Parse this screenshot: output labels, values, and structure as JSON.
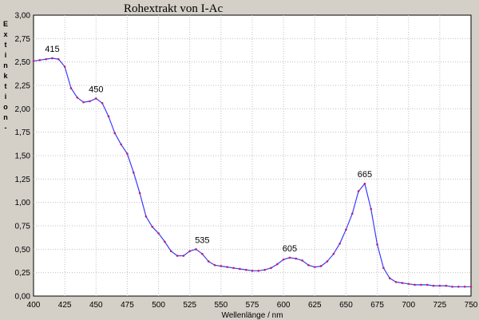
{
  "chart_data": {
    "type": "line",
    "title": "Rohextrakt von I-Ac",
    "xlabel": "Wellenlänge / nm",
    "ylabel": "Extinktion -",
    "xlim": [
      400,
      750
    ],
    "ylim": [
      0,
      3
    ],
    "xticks": [
      "400",
      "425",
      "450",
      "475",
      "500",
      "525",
      "550",
      "575",
      "600",
      "625",
      "650",
      "675",
      "700",
      "725",
      "750"
    ],
    "yticks": [
      "0,00",
      "0,25",
      "0,50",
      "0,75",
      "1,00",
      "1,25",
      "1,50",
      "1,75",
      "2,00",
      "2,25",
      "2,50",
      "2,75",
      "3,00"
    ],
    "grid": true,
    "line_color": "#3a3aff",
    "marker_color": "#c02060",
    "series": [
      {
        "x": [
          400,
          405,
          410,
          415,
          420,
          425,
          430,
          435,
          440,
          445,
          450,
          455,
          460,
          465,
          470,
          475,
          480,
          485,
          490,
          495,
          500,
          505,
          510,
          515,
          520,
          525,
          530,
          535,
          540,
          545,
          550,
          555,
          560,
          565,
          570,
          575,
          580,
          585,
          590,
          595,
          600,
          605,
          610,
          615,
          620,
          625,
          630,
          635,
          640,
          645,
          650,
          655,
          660,
          665,
          670,
          675,
          680,
          685,
          690,
          695,
          700,
          705,
          710,
          715,
          720,
          725,
          730,
          735,
          740,
          745,
          750
        ],
        "y": [
          2.51,
          2.52,
          2.53,
          2.54,
          2.53,
          2.45,
          2.22,
          2.12,
          2.07,
          2.08,
          2.11,
          2.06,
          1.92,
          1.74,
          1.62,
          1.52,
          1.32,
          1.1,
          0.85,
          0.74,
          0.67,
          0.58,
          0.48,
          0.43,
          0.43,
          0.48,
          0.5,
          0.45,
          0.37,
          0.33,
          0.32,
          0.31,
          0.3,
          0.29,
          0.28,
          0.27,
          0.27,
          0.28,
          0.3,
          0.34,
          0.39,
          0.41,
          0.4,
          0.38,
          0.33,
          0.31,
          0.32,
          0.37,
          0.45,
          0.56,
          0.71,
          0.88,
          1.12,
          1.2,
          0.93,
          0.55,
          0.3,
          0.19,
          0.15,
          0.14,
          0.13,
          0.12,
          0.12,
          0.12,
          0.11,
          0.11,
          0.11,
          0.1,
          0.1,
          0.1,
          0.1
        ]
      }
    ],
    "annotations": [
      {
        "text": "415",
        "x": 415,
        "y": 2.54
      },
      {
        "text": "450",
        "x": 450,
        "y": 2.11
      },
      {
        "text": "535",
        "x": 535,
        "y": 0.5
      },
      {
        "text": "605",
        "x": 605,
        "y": 0.41
      },
      {
        "text": "665",
        "x": 665,
        "y": 1.2
      }
    ]
  }
}
